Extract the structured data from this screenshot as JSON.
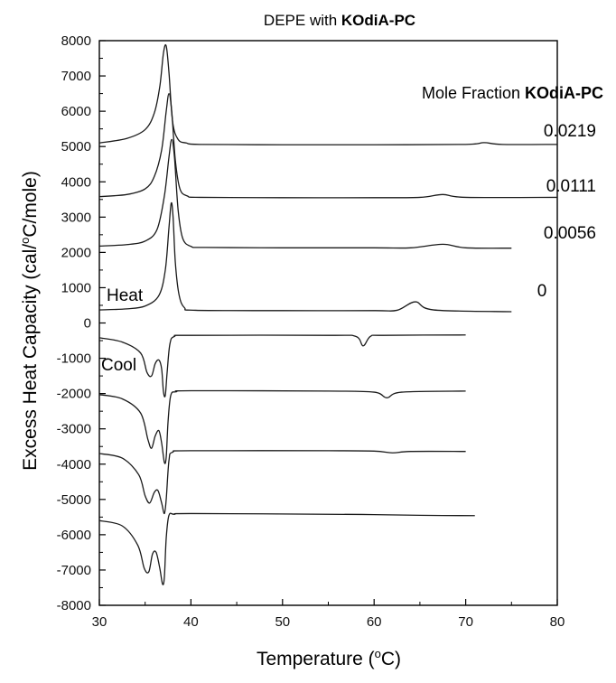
{
  "chart_data": {
    "type": "line",
    "title_prefix": "DEPE with ",
    "title_compound": "KOdiA-PC",
    "xlabel_prefix": "Temperature (",
    "xlabel_degree": "o",
    "xlabel_suffix": "C)",
    "ylabel_prefix": "Excess Heat Capacity (cal/",
    "ylabel_degree": "o",
    "ylabel_suffix": "C/mole)",
    "xlim": [
      30,
      80
    ],
    "ylim": [
      -8000,
      8000
    ],
    "x_ticks": [
      30,
      40,
      50,
      60,
      70,
      80
    ],
    "y_ticks": [
      8000,
      7000,
      6000,
      5000,
      4000,
      3000,
      2000,
      1000,
      0,
      -1000,
      -2000,
      -3000,
      -4000,
      -5000,
      -6000,
      -7000,
      -8000
    ],
    "legend_title_prefix": "Mole Fraction ",
    "legend_title_compound": "KOdiA-PC",
    "mode_labels": {
      "heat": "Heat",
      "cool": "Cool"
    },
    "fraction_labels": [
      "0.0219",
      "0.0111",
      "0.0056",
      "0"
    ],
    "series": [
      {
        "mode": "heat",
        "fraction": "0.0219",
        "x": [
          30,
          33,
          35,
          36,
          36.6,
          37.0,
          37.3,
          37.6,
          38.0,
          38.6,
          39.5,
          41,
          50,
          60,
          70,
          72,
          74,
          80
        ],
        "y": [
          5100,
          5230,
          5480,
          5950,
          6700,
          7650,
          7850,
          7100,
          5700,
          5200,
          5100,
          5060,
          5050,
          5050,
          5060,
          5110,
          5060,
          5060
        ]
      },
      {
        "mode": "heat",
        "fraction": "0.0111",
        "x": [
          30,
          33,
          35,
          36,
          36.8,
          37.3,
          37.6,
          37.9,
          38.3,
          38.8,
          39.6,
          41,
          50,
          60,
          65,
          67.5,
          70,
          80
        ],
        "y": [
          3580,
          3640,
          3800,
          4150,
          4900,
          6000,
          6500,
          6000,
          4600,
          3800,
          3600,
          3560,
          3550,
          3550,
          3560,
          3640,
          3560,
          3560
        ]
      },
      {
        "mode": "heat",
        "fraction": "0.0056",
        "x": [
          30,
          33,
          35,
          36.3,
          37.1,
          37.6,
          37.9,
          38.2,
          38.6,
          39.1,
          40,
          41.5,
          50,
          60,
          64,
          67.5,
          70,
          75
        ],
        "y": [
          2180,
          2220,
          2320,
          2650,
          3600,
          4700,
          5200,
          4700,
          3200,
          2400,
          2170,
          2140,
          2130,
          2130,
          2130,
          2230,
          2130,
          2120
        ]
      },
      {
        "mode": "heat",
        "fraction": "0",
        "x": [
          30,
          33,
          35,
          36.5,
          37.2,
          37.6,
          37.85,
          38.05,
          38.3,
          38.7,
          39.3,
          40.5,
          50,
          60,
          62.5,
          64.5,
          66.5,
          75
        ],
        "y": [
          370,
          400,
          480,
          780,
          1500,
          2700,
          3400,
          3000,
          1700,
          800,
          430,
          360,
          350,
          350,
          360,
          600,
          370,
          320
        ]
      },
      {
        "mode": "cool",
        "fraction": "0",
        "x": [
          30,
          32.5,
          34.5,
          35.2,
          35.7,
          36.1,
          36.5,
          36.8,
          37.0,
          37.2,
          37.4,
          37.7,
          38.2,
          40,
          55,
          58,
          58.8,
          59.6,
          61,
          70
        ],
        "y": [
          -420,
          -540,
          -850,
          -1400,
          -1500,
          -1150,
          -1050,
          -1300,
          -1950,
          -2050,
          -1400,
          -600,
          -380,
          -350,
          -350,
          -380,
          -650,
          -380,
          -350,
          -340
        ]
      },
      {
        "mode": "cool",
        "fraction": "0.0056",
        "x": [
          30,
          32.5,
          34.5,
          35.3,
          35.7,
          36.1,
          36.5,
          36.8,
          37.1,
          37.3,
          37.5,
          37.8,
          38.4,
          40,
          55,
          60,
          61.4,
          63,
          70
        ],
        "y": [
          -2030,
          -2150,
          -2550,
          -3300,
          -3550,
          -3200,
          -3050,
          -3400,
          -3950,
          -3800,
          -2800,
          -2050,
          -1950,
          -1920,
          -1930,
          -1960,
          -2120,
          -1960,
          -1930
        ]
      },
      {
        "mode": "cool",
        "fraction": "0.0111",
        "x": [
          30,
          32.5,
          34.3,
          35.0,
          35.5,
          36.0,
          36.4,
          36.8,
          37.1,
          37.3,
          37.6,
          38.0,
          40,
          55,
          60,
          62,
          64,
          70
        ],
        "y": [
          -3700,
          -3830,
          -4300,
          -4900,
          -5100,
          -4800,
          -4750,
          -5100,
          -5400,
          -5000,
          -3900,
          -3660,
          -3620,
          -3620,
          -3630,
          -3680,
          -3640,
          -3640
        ]
      },
      {
        "mode": "cool",
        "fraction": "0.0219",
        "x": [
          30,
          32.5,
          34.2,
          34.9,
          35.4,
          35.8,
          36.2,
          36.6,
          36.9,
          37.1,
          37.3,
          37.6,
          38.2,
          40,
          55,
          60,
          65,
          71
        ],
        "y": [
          -5600,
          -5750,
          -6300,
          -6950,
          -7050,
          -6550,
          -6500,
          -6950,
          -7400,
          -7200,
          -6100,
          -5450,
          -5420,
          -5400,
          -5420,
          -5430,
          -5450,
          -5460
        ]
      }
    ]
  }
}
